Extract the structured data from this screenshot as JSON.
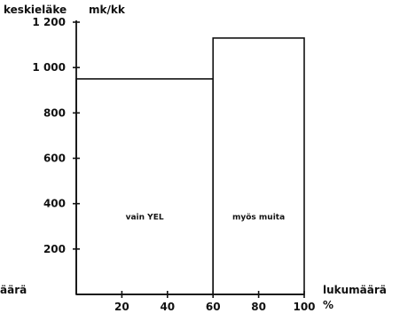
{
  "chart_data": {
    "type": "bar",
    "variable_width": true,
    "title": "",
    "ylabel": "keskieläke",
    "yunit": "mk/kk",
    "xlabel": "lukumäärä",
    "xlabel_left": "äärä",
    "x_unit_symbol": "%",
    "ylim": [
      0,
      1200
    ],
    "xlim": [
      0,
      100
    ],
    "yticks": [
      200,
      400,
      600,
      800,
      1000,
      1200
    ],
    "ytick_labels": [
      "200",
      "400",
      "600",
      "800",
      "1 000",
      "1 200"
    ],
    "xticks": [
      20,
      40,
      60,
      80,
      100
    ],
    "xtick_labels": [
      "20",
      "40",
      "60",
      "80",
      "100"
    ],
    "grid": false,
    "bars": [
      {
        "label": "vain  YEL",
        "x_start": 0,
        "x_end": 60,
        "value": 950
      },
      {
        "label": "myös  muita",
        "x_start": 60,
        "x_end": 100,
        "value": 1130
      }
    ]
  }
}
